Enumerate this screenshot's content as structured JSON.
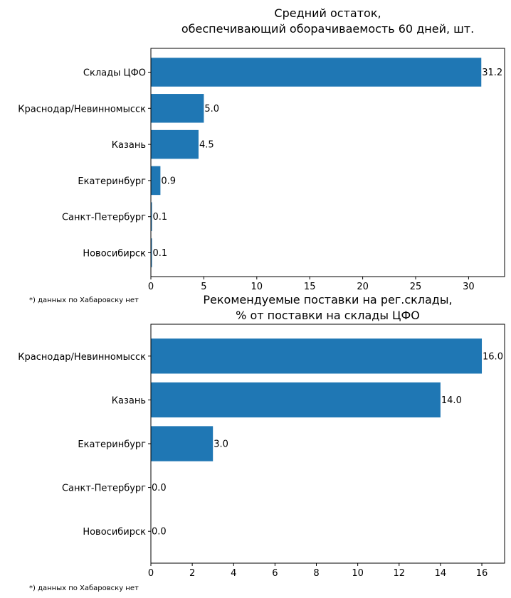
{
  "bar_color": "#1f77b4",
  "chart_data": [
    {
      "type": "bar",
      "orientation": "horizontal",
      "title": "Средний остаток,\nобеспечивающий оборачиваемость 60 дней, шт.",
      "categories": [
        "Склады ЦФО",
        "Краснодар/Невинномысск",
        "Казань",
        "Екатеринбург",
        "Санкт-Петербург",
        "Новосибирск"
      ],
      "values": [
        31.2,
        5.0,
        4.5,
        0.9,
        0.1,
        0.1
      ],
      "value_labels": [
        "31.2",
        "5.0",
        "4.5",
        "0.9",
        "0.1",
        "0.1"
      ],
      "xlim": [
        0,
        33.4
      ],
      "xticks": [
        0,
        5,
        10,
        15,
        20,
        25,
        30
      ],
      "xtick_labels": [
        "0",
        "5",
        "10",
        "15",
        "20",
        "25",
        "30"
      ],
      "grid": false,
      "footnote": "*) данных по Хабаровску нет"
    },
    {
      "type": "bar",
      "orientation": "horizontal",
      "title": "Рекомендуемые поставки на рег.склады,\n% от поставки на склады ЦФО",
      "categories": [
        "Краснодар/Невинномысск",
        "Казань",
        "Екатеринбург",
        "Санкт-Петербург",
        "Новосибирск"
      ],
      "values": [
        16.0,
        14.0,
        3.0,
        0.0,
        0.0
      ],
      "value_labels": [
        "16.0",
        "14.0",
        "3.0",
        "0.0",
        "0.0"
      ],
      "xlim": [
        0,
        17.1
      ],
      "xticks": [
        0,
        2,
        4,
        6,
        8,
        10,
        12,
        14,
        16
      ],
      "xtick_labels": [
        "0",
        "2",
        "4",
        "6",
        "8",
        "10",
        "12",
        "14",
        "16"
      ],
      "grid": false,
      "footnote": "*) данных по Хабаровску нет"
    }
  ]
}
